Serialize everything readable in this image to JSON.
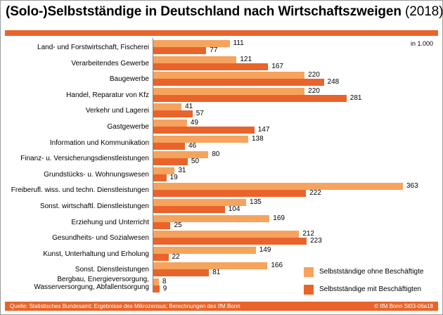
{
  "title": {
    "bold": "(Solo-)Selbstständige in Deutschland nach Wirtschaftszweigen",
    "normal": " (2018)"
  },
  "unit": "in 1.000",
  "source": "Quelle: Statistisches Bundesamt: Ergebnisse des Mikrozensus; Berechnungen des IfM Bonn",
  "code": "© IfM Bonn  St03-06a18",
  "colors": {
    "series1": "#f6a35e",
    "series2": "#e8642a"
  },
  "chart_data": {
    "type": "bar",
    "orientation": "horizontal",
    "title": "(Solo-)Selbstständige in Deutschland nach Wirtschaftszweigen (2018)",
    "unit": "in 1.000",
    "xlim": [
      0,
      363
    ],
    "categories": [
      "Land- und Forstwirtschaft, Fischerei",
      "Verarbeitendes Gewerbe",
      "Baugewerbe",
      "Handel, Reparatur von Kfz",
      "Verkehr und Lagerei",
      "Gastgewerbe",
      "Information und Kommunikation",
      "Finanz- u. Versicherungsdienstleistungen",
      "Grundstücks- u. Wohnungswesen",
      "Freiberufl. wiss. und techn. Dienstleistungen",
      "Sonst. wirtschaftl. Dienstleistungen",
      "Erziehung und Unterricht",
      "Gesundheits- und Sozialwesen",
      "Kunst, Unterhaltung und Erholung",
      "Sonst. Dienstleistungen",
      "Bergbau, Energieversorgung, Wasserversorgung, Abfallentsorgung"
    ],
    "series": [
      {
        "name": "Selbstständige ohne Beschäftigte",
        "values": [
          111,
          121,
          220,
          220,
          41,
          49,
          138,
          80,
          31,
          363,
          135,
          169,
          212,
          149,
          166,
          8
        ]
      },
      {
        "name": "Selbstständige mit Beschäftigten",
        "values": [
          77,
          167,
          248,
          281,
          57,
          147,
          46,
          50,
          19,
          222,
          104,
          25,
          223,
          22,
          81,
          9
        ]
      }
    ]
  }
}
